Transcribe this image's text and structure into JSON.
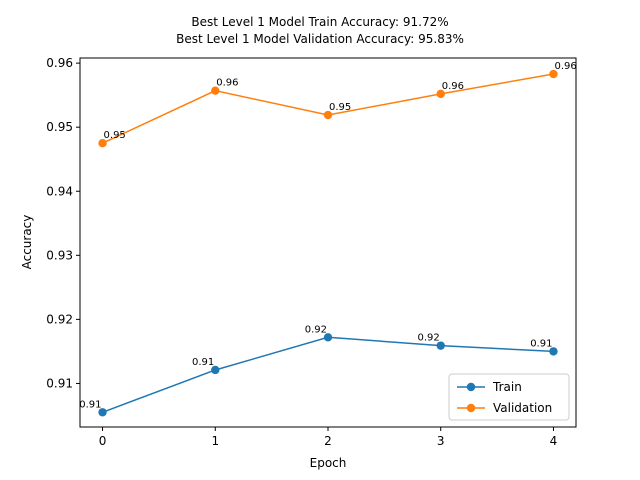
{
  "chart_data": {
    "type": "line",
    "title": "Best Level 1 Model Train Accuracy: 91.72%",
    "subtitle": "Best Level 1 Model Validation Accuracy: 95.83%",
    "xlabel": "Epoch",
    "ylabel": "Accuracy",
    "x": [
      0,
      1,
      2,
      3,
      4
    ],
    "xticks": [
      "0",
      "1",
      "2",
      "3",
      "4"
    ],
    "yticks": [
      "0.91",
      "0.92",
      "0.93",
      "0.94",
      "0.95",
      "0.96"
    ],
    "ylim": [
      0.9032,
      0.9608
    ],
    "xlim": [
      -0.2,
      4.2
    ],
    "legend_position": "lower-right",
    "grid": false,
    "series": [
      {
        "name": "Train",
        "color": "#1f77b4",
        "values": [
          0.9055,
          0.9121,
          0.9172,
          0.9159,
          0.915
        ],
        "labels": [
          "0.91",
          "0.91",
          "0.92",
          "0.92",
          "0.91"
        ],
        "label_side": "left"
      },
      {
        "name": "Validation",
        "color": "#ff7f0e",
        "values": [
          0.9475,
          0.9557,
          0.9519,
          0.9552,
          0.9583
        ],
        "labels": [
          "0.95",
          "0.96",
          "0.95",
          "0.96",
          "0.96"
        ],
        "label_side": "right"
      }
    ]
  }
}
